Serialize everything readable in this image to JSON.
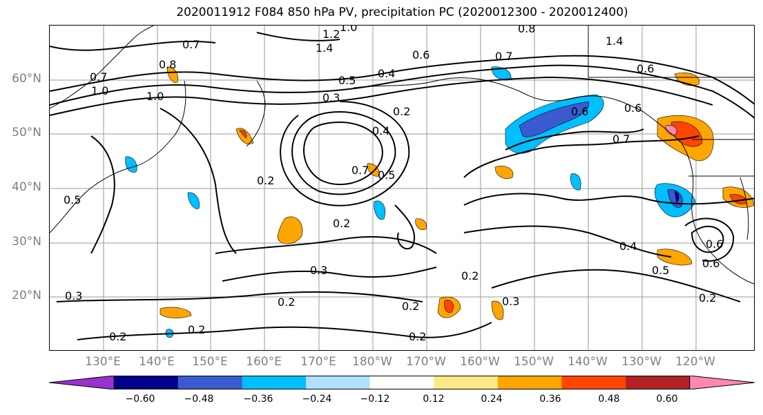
{
  "title": "2020011912 F084 850 hPa PV, precipitation PC (2020012300 - 2020012400)",
  "lat_labels": [
    "60°N",
    "50°N",
    "40°N",
    "30°N",
    "20°N"
  ],
  "lon_labels": [
    "130°E",
    "140°E",
    "150°E",
    "160°E",
    "170°E",
    "180°W",
    "170°W",
    "160°W",
    "150°W",
    "140°W",
    "130°W",
    "120°W"
  ],
  "colorbar": {
    "ticks": [
      "−0.60",
      "−0.48",
      "−0.36",
      "−0.24",
      "−0.12",
      "0.12",
      "0.24",
      "0.36",
      "0.48",
      "0.60"
    ],
    "colors": [
      "#9932cc",
      "#00008b",
      "#3a5bcf",
      "#00bfff",
      "#b0e0ff",
      "#ffffff",
      "#ffe987",
      "#ffa500",
      "#ff4500",
      "#b22222",
      "#ff88b0"
    ]
  },
  "contour_labels": [
    "1.2",
    "1.4",
    "1.0",
    "0.8",
    "1.4",
    "0.7",
    "0.6",
    "0.4",
    "0.5",
    "0.3",
    "0.2",
    "0.4",
    "0.6",
    "0.7",
    "0.6",
    "0.7",
    "0.5",
    "0.2",
    "0.2",
    "0.4",
    "0.5",
    "0.6",
    "0.6",
    "0.2",
    "0.3",
    "0.2",
    "0.2",
    "0.2",
    "0.3",
    "0.3",
    "0.2",
    "0.2",
    "0.2",
    "0.7",
    "1.0",
    "0.7",
    "0.8",
    "1.0",
    "0.6",
    "0.5"
  ]
}
